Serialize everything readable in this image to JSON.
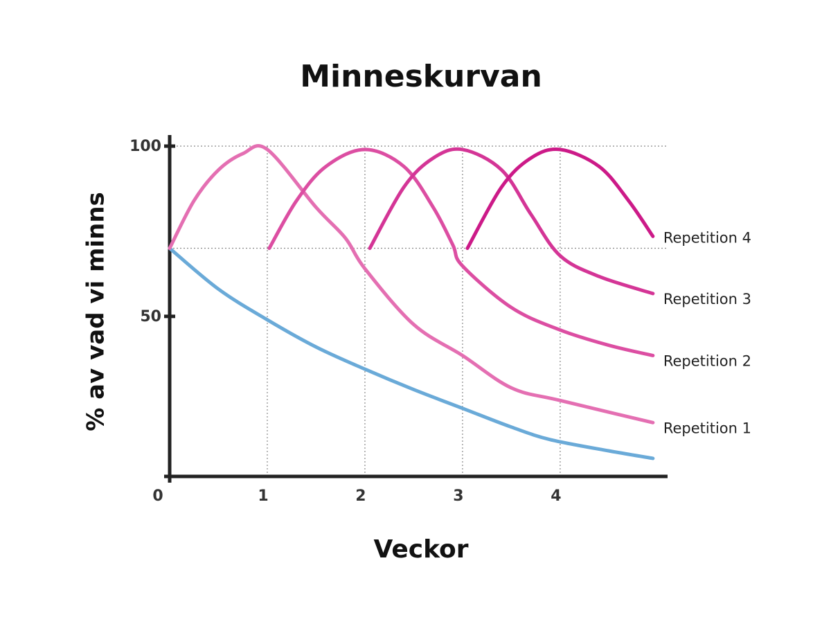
{
  "chart_data": {
    "type": "line",
    "title": "Minneskurvan",
    "x_label": "Veckor",
    "y_label": "% av vad vi minns",
    "xlim": [
      0,
      5.1
    ],
    "ylim": [
      3,
      100
    ],
    "xticks": [
      0,
      1,
      2,
      3,
      4
    ],
    "yticks": [
      50,
      100
    ],
    "grid": true,
    "hlines": [
      70,
      100
    ],
    "series": [
      {
        "color": "#6aaad8",
        "x": [
          0,
          0.5,
          1,
          1.5,
          2,
          2.5,
          3,
          3.5,
          3.9,
          4.5,
          4.95
        ],
        "values": [
          70,
          58,
          49,
          41,
          34.5,
          28.5,
          23,
          17.5,
          13.8,
          10.5,
          8.3
        ]
      },
      {
        "name": "Repetition 1",
        "color": "#e46fb2",
        "x": [
          0,
          0.25,
          0.5,
          0.75,
          1,
          1.5,
          1.8,
          2,
          2.5,
          3,
          3.5,
          4,
          4.95
        ],
        "values": [
          70,
          84,
          93,
          97.8,
          99,
          82,
          73,
          64,
          47.6,
          38.5,
          29,
          25.3,
          18.8
        ]
      },
      {
        "name": "Repetition 2",
        "color": "#dc4ea2",
        "x": [
          1.02,
          1.3,
          1.6,
          2,
          2.4,
          2.7,
          2.9,
          3,
          3.5,
          4,
          4.5,
          4.95
        ],
        "values": [
          70,
          84,
          94,
          99,
          94,
          82,
          71,
          64.8,
          52.6,
          46,
          41.5,
          38.5
        ]
      },
      {
        "name": "Repetition 3",
        "color": "#d43596",
        "x": [
          2.05,
          2.4,
          2.7,
          3,
          3.4,
          3.7,
          4,
          4.4,
          4.95
        ],
        "values": [
          70,
          88,
          96.5,
          99,
          93,
          80,
          67.8,
          61.7,
          56.7
        ]
      },
      {
        "name": "Repetition 4",
        "color": "#cc1a88",
        "x": [
          3.05,
          3.4,
          3.7,
          4,
          4.4,
          4.7,
          4.95
        ],
        "values": [
          70,
          88,
          96.5,
          99,
          94,
          84,
          73.5
        ]
      }
    ]
  }
}
